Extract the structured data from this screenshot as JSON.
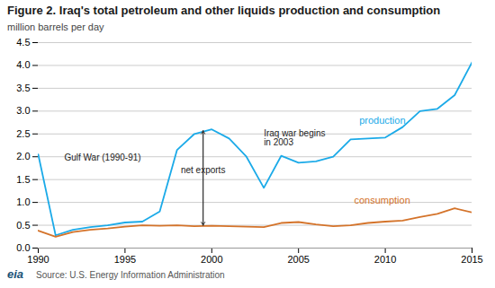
{
  "chart_data": {
    "type": "line",
    "title": "Figure 2. Iraq's total petroleum and other liquids production and consumption",
    "subtitle": "million barrels per day",
    "source": "Source: U.S. Energy Information Administration",
    "logo": "eia",
    "x": [
      1990,
      1991,
      1992,
      1993,
      1994,
      1995,
      1996,
      1997,
      1998,
      1999,
      2000,
      2001,
      2002,
      2003,
      2004,
      2005,
      2006,
      2007,
      2008,
      2009,
      2010,
      2011,
      2012,
      2013,
      2014,
      2015
    ],
    "series": [
      {
        "name": "production",
        "color": "#1baae8",
        "label_x": 2008.5,
        "label_y": 2.72,
        "values": [
          2.05,
          0.28,
          0.4,
          0.46,
          0.5,
          0.56,
          0.58,
          0.8,
          2.15,
          2.5,
          2.6,
          2.4,
          2.0,
          1.32,
          2.02,
          1.87,
          1.9,
          2.0,
          2.38,
          2.4,
          2.42,
          2.65,
          3.0,
          3.05,
          3.35,
          4.07
        ]
      },
      {
        "name": "consumption",
        "color": "#d4732a",
        "label_x": 2008.2,
        "label_y": 0.97,
        "values": [
          0.38,
          0.25,
          0.35,
          0.4,
          0.43,
          0.47,
          0.5,
          0.49,
          0.5,
          0.48,
          0.49,
          0.48,
          0.47,
          0.46,
          0.55,
          0.57,
          0.52,
          0.48,
          0.5,
          0.55,
          0.58,
          0.6,
          0.68,
          0.75,
          0.87,
          0.78
        ]
      }
    ],
    "xlim": [
      1990,
      2015
    ],
    "xticks": [
      1990,
      1995,
      2000,
      2005,
      2010,
      2015
    ],
    "ylim": [
      0.0,
      4.5
    ],
    "yticks": [
      {
        "value": 0.0,
        "label": "0.0"
      },
      0.5,
      {
        "value": 1.0,
        "label": "1.0"
      },
      1.5,
      {
        "value": 2.0,
        "label": "2.0"
      },
      2.5,
      {
        "value": 3.0,
        "label": "3.0"
      },
      3.5,
      {
        "value": 4.0,
        "label": "4.0"
      },
      4.5
    ],
    "grid": true,
    "annotations": [
      {
        "text": "Gulf War (1990-91)",
        "x": 1991.5,
        "y": 1.92
      },
      {
        "text": "Iraq war begins\nin 2003",
        "x": 2003.0,
        "y": 2.25
      }
    ],
    "arrow": {
      "label": "net exports",
      "x": 1999.5,
      "label_y": 1.65,
      "y_top": 2.57,
      "y_bottom": 0.5
    }
  }
}
